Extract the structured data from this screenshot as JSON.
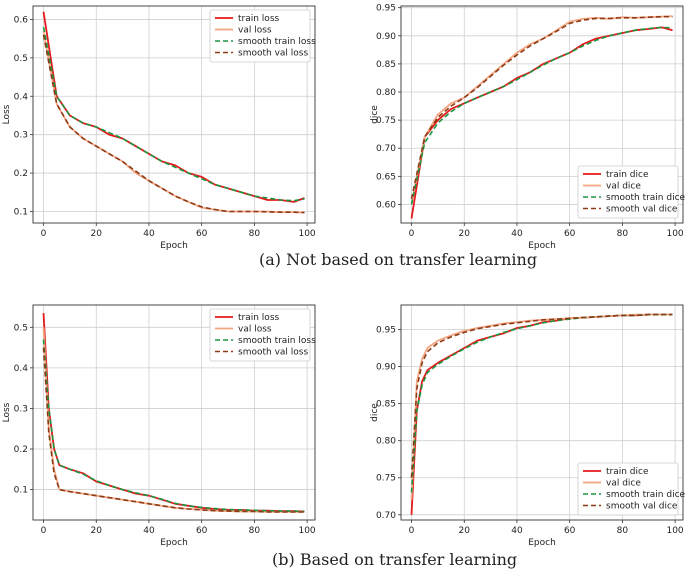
{
  "captions": {
    "a": "(a) Not based on transfer learning",
    "b": "(b) Based on transfer learning"
  },
  "chart_data": [
    {
      "id": "a-loss",
      "type": "line",
      "title": "",
      "xlabel": "Epoch",
      "ylabel": "Loss",
      "xlim": [
        -4,
        103
      ],
      "ylim": [
        0.07,
        0.635
      ],
      "xticks": [
        0,
        20,
        40,
        60,
        80,
        100
      ],
      "yticks": [
        0.1,
        0.2,
        0.3,
        0.4,
        0.5,
        0.6
      ],
      "ytick_labels": [
        "0.1",
        "0.2",
        "0.3",
        "0.4",
        "0.5",
        "0.6"
      ],
      "grid": true,
      "legend": "top-right",
      "x": [
        0,
        5,
        10,
        15,
        20,
        25,
        30,
        35,
        40,
        45,
        50,
        55,
        60,
        65,
        70,
        75,
        80,
        85,
        90,
        95,
        99
      ],
      "series": [
        {
          "name": "train loss",
          "color": "#e41a1c",
          "dash": "",
          "width": 1.8,
          "values": [
            0.62,
            0.4,
            0.35,
            0.33,
            0.32,
            0.3,
            0.29,
            0.27,
            0.25,
            0.23,
            0.22,
            0.2,
            0.19,
            0.17,
            0.16,
            0.15,
            0.14,
            0.13,
            0.13,
            0.125,
            0.135
          ]
        },
        {
          "name": "val loss",
          "color": "#f4a582",
          "dash": "",
          "width": 1.8,
          "values": [
            0.57,
            0.38,
            0.32,
            0.29,
            0.27,
            0.25,
            0.23,
            0.2,
            0.18,
            0.16,
            0.14,
            0.125,
            0.11,
            0.105,
            0.1,
            0.1,
            0.1,
            0.1,
            0.098,
            0.098,
            0.097
          ]
        },
        {
          "name": "smooth train loss",
          "color": "#1a9641",
          "dash": "5,3",
          "width": 1.6,
          "values": [
            0.58,
            0.4,
            0.35,
            0.33,
            0.32,
            0.305,
            0.29,
            0.27,
            0.25,
            0.23,
            0.215,
            0.2,
            0.185,
            0.17,
            0.16,
            0.15,
            0.14,
            0.135,
            0.13,
            0.128,
            0.133
          ]
        },
        {
          "name": "smooth val loss",
          "color": "#8c3b16",
          "dash": "5,3",
          "width": 1.6,
          "values": [
            0.56,
            0.38,
            0.32,
            0.29,
            0.27,
            0.25,
            0.23,
            0.205,
            0.18,
            0.16,
            0.14,
            0.125,
            0.112,
            0.105,
            0.1,
            0.1,
            0.1,
            0.099,
            0.098,
            0.098,
            0.097
          ]
        }
      ]
    },
    {
      "id": "a-dice",
      "type": "line",
      "title": "",
      "xlabel": "Epoch",
      "ylabel": "dice",
      "xlim": [
        -4,
        103
      ],
      "ylim": [
        0.567,
        0.953
      ],
      "xticks": [
        0,
        20,
        40,
        60,
        80,
        100
      ],
      "yticks": [
        0.6,
        0.65,
        0.7,
        0.75,
        0.8,
        0.85,
        0.9,
        0.95
      ],
      "ytick_labels": [
        "0.60",
        "0.65",
        "0.70",
        "0.75",
        "0.80",
        "0.85",
        "0.90",
        "0.95"
      ],
      "grid": true,
      "legend": "bottom-right",
      "x": [
        0,
        5,
        10,
        15,
        20,
        25,
        30,
        35,
        40,
        45,
        50,
        55,
        60,
        65,
        70,
        75,
        80,
        85,
        90,
        95,
        99
      ],
      "series": [
        {
          "name": "train dice",
          "color": "#e41a1c",
          "dash": "",
          "width": 1.8,
          "values": [
            0.575,
            0.72,
            0.75,
            0.77,
            0.78,
            0.79,
            0.8,
            0.81,
            0.825,
            0.835,
            0.85,
            0.86,
            0.87,
            0.885,
            0.895,
            0.9,
            0.905,
            0.91,
            0.912,
            0.915,
            0.91
          ]
        },
        {
          "name": "val dice",
          "color": "#f4a582",
          "dash": "",
          "width": 1.8,
          "values": [
            0.6,
            0.72,
            0.76,
            0.78,
            0.79,
            0.81,
            0.83,
            0.85,
            0.87,
            0.885,
            0.895,
            0.91,
            0.925,
            0.93,
            0.932,
            0.93,
            0.933,
            0.932,
            0.933,
            0.934,
            0.935
          ]
        },
        {
          "name": "smooth train dice",
          "color": "#1a9641",
          "dash": "5,3",
          "width": 1.6,
          "values": [
            0.6,
            0.71,
            0.745,
            0.765,
            0.78,
            0.79,
            0.8,
            0.81,
            0.822,
            0.835,
            0.848,
            0.86,
            0.87,
            0.882,
            0.892,
            0.9,
            0.905,
            0.91,
            0.913,
            0.915,
            0.914
          ]
        },
        {
          "name": "smooth val dice",
          "color": "#8c3b16",
          "dash": "5,3",
          "width": 1.6,
          "values": [
            0.61,
            0.72,
            0.755,
            0.775,
            0.79,
            0.808,
            0.828,
            0.848,
            0.866,
            0.882,
            0.895,
            0.908,
            0.922,
            0.928,
            0.931,
            0.931,
            0.932,
            0.932,
            0.933,
            0.934,
            0.934
          ]
        }
      ]
    },
    {
      "id": "b-loss",
      "type": "line",
      "title": "",
      "xlabel": "Epoch",
      "ylabel": "Loss",
      "xlim": [
        -4,
        103
      ],
      "ylim": [
        0.025,
        0.555
      ],
      "xticks": [
        0,
        20,
        40,
        60,
        80,
        100
      ],
      "yticks": [
        0.1,
        0.2,
        0.3,
        0.4,
        0.5
      ],
      "ytick_labels": [
        "0.1",
        "0.2",
        "0.3",
        "0.4",
        "0.5"
      ],
      "grid": true,
      "legend": "top-right",
      "x": [
        0,
        2,
        4,
        6,
        10,
        15,
        20,
        25,
        30,
        35,
        40,
        45,
        50,
        55,
        60,
        65,
        70,
        75,
        80,
        85,
        90,
        95,
        99
      ],
      "series": [
        {
          "name": "train loss",
          "color": "#e41a1c",
          "dash": "",
          "width": 1.8,
          "values": [
            0.535,
            0.3,
            0.2,
            0.16,
            0.15,
            0.14,
            0.12,
            0.11,
            0.1,
            0.09,
            0.085,
            0.075,
            0.065,
            0.06,
            0.055,
            0.052,
            0.05,
            0.05,
            0.048,
            0.048,
            0.047,
            0.047,
            0.046
          ]
        },
        {
          "name": "val loss",
          "color": "#f4a582",
          "dash": "",
          "width": 1.8,
          "values": [
            0.5,
            0.25,
            0.15,
            0.1,
            0.095,
            0.09,
            0.085,
            0.08,
            0.075,
            0.07,
            0.065,
            0.06,
            0.055,
            0.052,
            0.05,
            0.048,
            0.047,
            0.046,
            0.046,
            0.045,
            0.045,
            0.045,
            0.045
          ]
        },
        {
          "name": "smooth train loss",
          "color": "#1a9641",
          "dash": "5,3",
          "width": 1.6,
          "values": [
            0.47,
            0.3,
            0.2,
            0.16,
            0.15,
            0.138,
            0.122,
            0.11,
            0.1,
            0.092,
            0.085,
            0.076,
            0.066,
            0.06,
            0.056,
            0.053,
            0.051,
            0.05,
            0.049,
            0.048,
            0.047,
            0.047,
            0.046
          ]
        },
        {
          "name": "smooth val loss",
          "color": "#8c3b16",
          "dash": "5,3",
          "width": 1.6,
          "values": [
            0.45,
            0.24,
            0.14,
            0.1,
            0.095,
            0.09,
            0.085,
            0.08,
            0.075,
            0.07,
            0.065,
            0.06,
            0.055,
            0.052,
            0.05,
            0.048,
            0.047,
            0.046,
            0.046,
            0.045,
            0.045,
            0.045,
            0.045
          ]
        }
      ]
    },
    {
      "id": "b-dice",
      "type": "line",
      "title": "",
      "xlabel": "Epoch",
      "ylabel": "dice",
      "xlim": [
        -4,
        103
      ],
      "ylim": [
        0.693,
        0.983
      ],
      "xticks": [
        0,
        20,
        40,
        60,
        80,
        100
      ],
      "yticks": [
        0.7,
        0.75,
        0.8,
        0.85,
        0.9,
        0.95
      ],
      "ytick_labels": [
        "0.70",
        "0.75",
        "0.80",
        "0.85",
        "0.90",
        "0.95"
      ],
      "grid": true,
      "legend": "bottom-right",
      "x": [
        0,
        2,
        4,
        6,
        10,
        15,
        20,
        25,
        30,
        35,
        40,
        45,
        50,
        55,
        60,
        65,
        70,
        75,
        80,
        85,
        90,
        95,
        99
      ],
      "series": [
        {
          "name": "train dice",
          "color": "#e41a1c",
          "dash": "",
          "width": 1.8,
          "values": [
            0.7,
            0.84,
            0.88,
            0.895,
            0.905,
            0.915,
            0.925,
            0.935,
            0.94,
            0.945,
            0.952,
            0.955,
            0.96,
            0.962,
            0.965,
            0.966,
            0.967,
            0.968,
            0.969,
            0.969,
            0.97,
            0.97,
            0.97
          ]
        },
        {
          "name": "val dice",
          "color": "#f4a582",
          "dash": "",
          "width": 1.8,
          "values": [
            0.72,
            0.88,
            0.91,
            0.925,
            0.935,
            0.942,
            0.948,
            0.952,
            0.955,
            0.958,
            0.96,
            0.962,
            0.963,
            0.964,
            0.965,
            0.966,
            0.967,
            0.968,
            0.969,
            0.97,
            0.97,
            0.97,
            0.97
          ]
        },
        {
          "name": "smooth train dice",
          "color": "#1a9641",
          "dash": "5,3",
          "width": 1.6,
          "values": [
            0.73,
            0.84,
            0.875,
            0.892,
            0.903,
            0.914,
            0.924,
            0.933,
            0.94,
            0.946,
            0.951,
            0.955,
            0.959,
            0.962,
            0.964,
            0.966,
            0.967,
            0.968,
            0.969,
            0.969,
            0.97,
            0.97,
            0.97
          ]
        },
        {
          "name": "smooth val dice",
          "color": "#8c3b16",
          "dash": "5,3",
          "width": 1.6,
          "values": [
            0.75,
            0.87,
            0.905,
            0.92,
            0.932,
            0.94,
            0.946,
            0.951,
            0.954,
            0.957,
            0.959,
            0.961,
            0.963,
            0.964,
            0.965,
            0.966,
            0.967,
            0.968,
            0.969,
            0.969,
            0.97,
            0.97,
            0.97
          ]
        }
      ]
    }
  ]
}
